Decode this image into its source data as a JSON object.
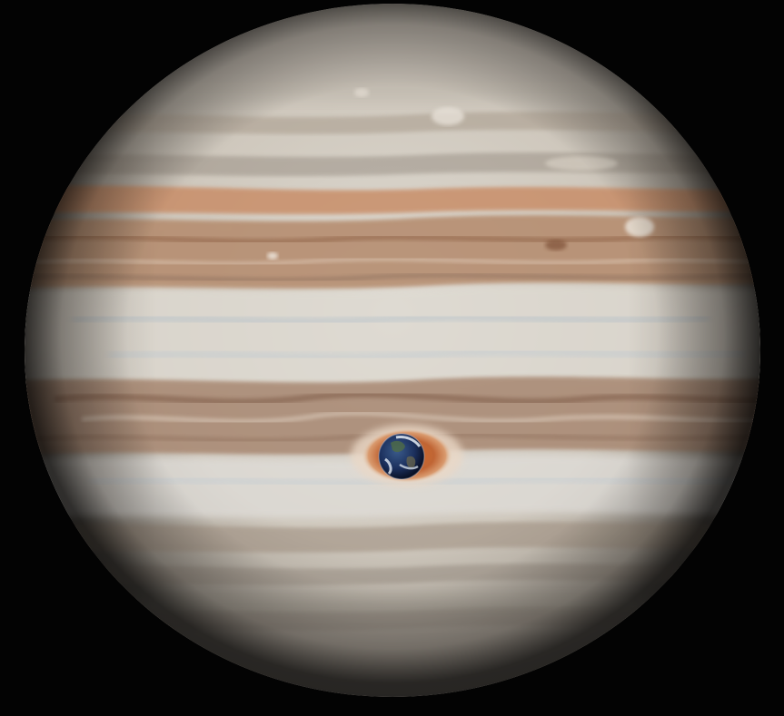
{
  "scene": {
    "background_color": "#030303",
    "subjects": [
      {
        "name": "jupiter",
        "base_color": "#d8d2c8",
        "band_color": "#b98f72",
        "spot_color": "#c8713e"
      },
      {
        "name": "earth",
        "ocean_color": "#1b2f5c",
        "cloud_color": "#e6eef7"
      }
    ]
  }
}
